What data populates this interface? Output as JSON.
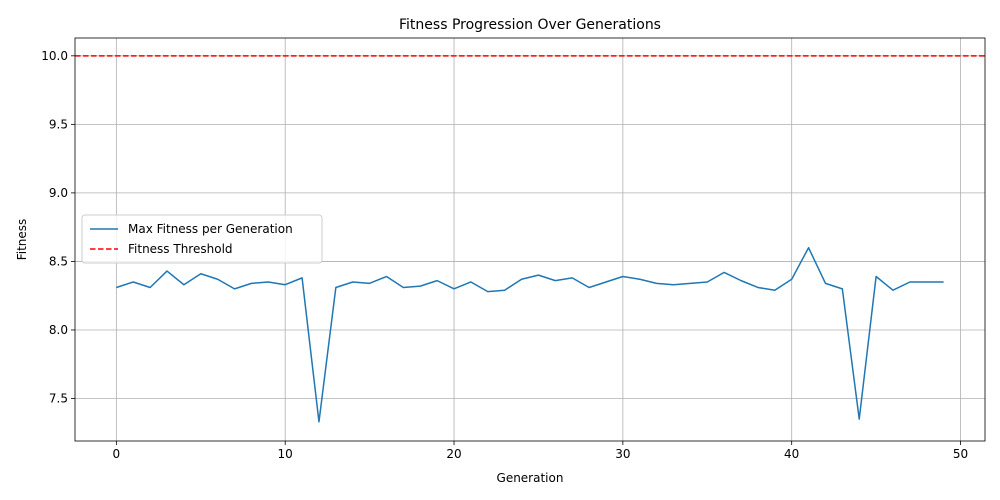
{
  "chart_data": {
    "type": "line",
    "title": "Fitness Progression Over Generations",
    "xlabel": "Generation",
    "ylabel": "Fitness",
    "xlim": [
      -2.45,
      51.45
    ],
    "ylim": [
      7.19,
      10.13
    ],
    "xticks": [
      0,
      10,
      20,
      30,
      40,
      50
    ],
    "yticks": [
      7.5,
      8.0,
      8.5,
      9.0,
      9.5,
      10.0
    ],
    "xtick_labels": [
      "0",
      "10",
      "20",
      "30",
      "40",
      "50"
    ],
    "ytick_labels": [
      "7.5",
      "8.0",
      "8.5",
      "9.0",
      "9.5",
      "10.0"
    ],
    "grid": true,
    "legend_position": "center-left",
    "series": [
      {
        "name": "Max Fitness per Generation",
        "color": "#1f77b4",
        "style": "solid",
        "x": [
          0,
          1,
          2,
          3,
          4,
          5,
          6,
          7,
          8,
          9,
          10,
          11,
          12,
          13,
          14,
          15,
          16,
          17,
          18,
          19,
          20,
          21,
          22,
          23,
          24,
          25,
          26,
          27,
          28,
          29,
          30,
          31,
          32,
          33,
          34,
          35,
          36,
          37,
          38,
          39,
          40,
          41,
          42,
          43,
          44,
          45,
          46,
          47,
          48,
          49
        ],
        "values": [
          8.31,
          8.35,
          8.31,
          8.43,
          8.33,
          8.41,
          8.37,
          8.3,
          8.34,
          8.35,
          8.33,
          8.38,
          7.33,
          8.31,
          8.35,
          8.34,
          8.39,
          8.31,
          8.32,
          8.36,
          8.3,
          8.35,
          8.28,
          8.29,
          8.37,
          8.4,
          8.36,
          8.38,
          8.31,
          8.35,
          8.39,
          8.37,
          8.34,
          8.33,
          8.34,
          8.35,
          8.42,
          8.36,
          8.31,
          8.29,
          8.37,
          8.6,
          8.34,
          8.3,
          7.35,
          8.39,
          8.29,
          8.35,
          8.35,
          8.35
        ]
      },
      {
        "name": "Fitness Threshold",
        "color": "#ff0000",
        "style": "dashed",
        "constant": 10.0
      }
    ]
  }
}
